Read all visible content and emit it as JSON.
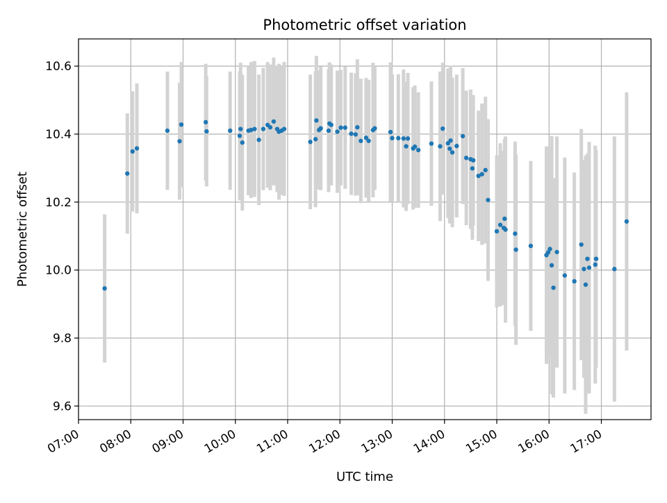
{
  "chart_data": {
    "type": "scatter",
    "title": "Photometric offset variation",
    "xlabel": "UTC time",
    "ylabel": "Photometric offset",
    "x_tick_labels": [
      "07:00",
      "08:00",
      "09:00",
      "10:00",
      "11:00",
      "12:00",
      "13:00",
      "14:00",
      "15:00",
      "16:00",
      "17:00"
    ],
    "y_tick_labels": [
      "9.6",
      "9.8",
      "10.0",
      "10.2",
      "10.4",
      "10.6"
    ],
    "y_ticks": [
      9.6,
      9.8,
      10.0,
      10.2,
      10.4,
      10.6
    ],
    "xlim": [
      "07:00",
      "17:57"
    ],
    "ylim": [
      9.56,
      10.68
    ],
    "grid": true,
    "colors": {
      "points": "#1f77b4",
      "error_bars": "#d3d3d3",
      "grid": "#b0b0b0"
    },
    "series": [
      {
        "x": [
          "07:30",
          "07:56",
          "08:02",
          "08:07",
          "08:42",
          "08:56",
          "08:58",
          "09:26",
          "09:27",
          "09:54",
          "10:05",
          "10:06",
          "10:08",
          "10:15",
          "10:18",
          "10:22",
          "10:27",
          "10:32",
          "10:37",
          "10:40",
          "10:44",
          "10:48",
          "10:50",
          "10:53",
          "10:56",
          "11:26",
          "11:32",
          "11:33",
          "11:36",
          "11:38",
          "11:47",
          "11:48",
          "11:50",
          "11:57",
          "12:01",
          "12:06",
          "12:13",
          "12:18",
          "12:20",
          "12:24",
          "12:30",
          "12:33",
          "12:38",
          "12:40",
          "12:58",
          "13:00",
          "13:07",
          "13:13",
          "13:16",
          "13:18",
          "13:24",
          "13:26",
          "13:30",
          "13:45",
          "13:55",
          "13:58",
          "14:04",
          "14:06",
          "14:07",
          "14:09",
          "14:14",
          "14:21",
          "14:25",
          "14:30",
          "14:32",
          "14:33",
          "14:39",
          "14:43",
          "14:47",
          "14:50",
          "15:00",
          "15:04",
          "15:08",
          "15:09",
          "15:10",
          "15:21",
          "15:22",
          "15:39",
          "15:57",
          "15:59",
          "16:01",
          "16:03",
          "16:05",
          "16:09",
          "16:18",
          "16:29",
          "16:37",
          "16:40",
          "16:42",
          "16:44",
          "16:46",
          "16:53",
          "16:54",
          "17:15",
          "17:29"
        ],
        "y": [
          9.946,
          10.284,
          10.349,
          10.358,
          10.41,
          10.379,
          10.428,
          10.435,
          10.408,
          10.41,
          10.395,
          10.415,
          10.375,
          10.41,
          10.412,
          10.415,
          10.383,
          10.415,
          10.427,
          10.42,
          10.437,
          10.415,
          10.407,
          10.41,
          10.415,
          10.377,
          10.385,
          10.44,
          10.412,
          10.417,
          10.41,
          10.431,
          10.427,
          10.407,
          10.419,
          10.419,
          10.401,
          10.399,
          10.42,
          10.38,
          10.389,
          10.38,
          10.412,
          10.417,
          10.406,
          10.388,
          10.388,
          10.387,
          10.364,
          10.387,
          10.358,
          10.363,
          10.353,
          10.372,
          10.364,
          10.416,
          10.373,
          10.357,
          10.381,
          10.346,
          10.365,
          10.394,
          10.33,
          10.326,
          10.299,
          10.323,
          10.277,
          10.282,
          10.294,
          10.206,
          10.114,
          10.133,
          10.124,
          10.151,
          10.119,
          10.107,
          10.06,
          10.071,
          10.044,
          10.052,
          10.062,
          10.014,
          9.948,
          10.053,
          9.984,
          9.967,
          10.075,
          10.003,
          9.957,
          10.033,
          10.007,
          10.016,
          10.033,
          10.003,
          10.143
        ],
        "err": [
          0.218,
          0.177,
          0.177,
          0.191,
          0.174,
          0.172,
          0.184,
          0.172,
          0.162,
          0.174,
          0.19,
          0.195,
          0.2,
          0.19,
          0.2,
          0.2,
          0.192,
          0.18,
          0.185,
          0.185,
          0.188,
          0.186,
          0.2,
          0.189,
          0.197,
          0.198,
          0.2,
          0.19,
          0.175,
          0.182,
          0.181,
          0.18,
          0.178,
          0.18,
          0.17,
          0.18,
          0.18,
          0.18,
          0.2,
          0.183,
          0.176,
          0.18,
          0.198,
          0.181,
          0.205,
          0.188,
          0.188,
          0.203,
          0.19,
          0.193,
          0.18,
          0.18,
          0.17,
          0.183,
          0.22,
          0.194,
          0.22,
          0.22,
          0.22,
          0.22,
          0.21,
          0.2,
          0.198,
          0.205,
          0.21,
          0.192,
          0.192,
          0.208,
          0.216,
          0.238,
          0.224,
          0.24,
          0.227,
          0.235,
          0.274,
          0.271,
          0.28,
          0.25,
          0.32,
          0.31,
          0.3,
          0.38,
          0.323,
          0.34,
          0.347,
          0.32,
          0.34,
          0.32,
          0.38,
          0.31,
          0.37,
          0.35,
          0.32,
          0.39,
          0.38
        ]
      }
    ]
  }
}
